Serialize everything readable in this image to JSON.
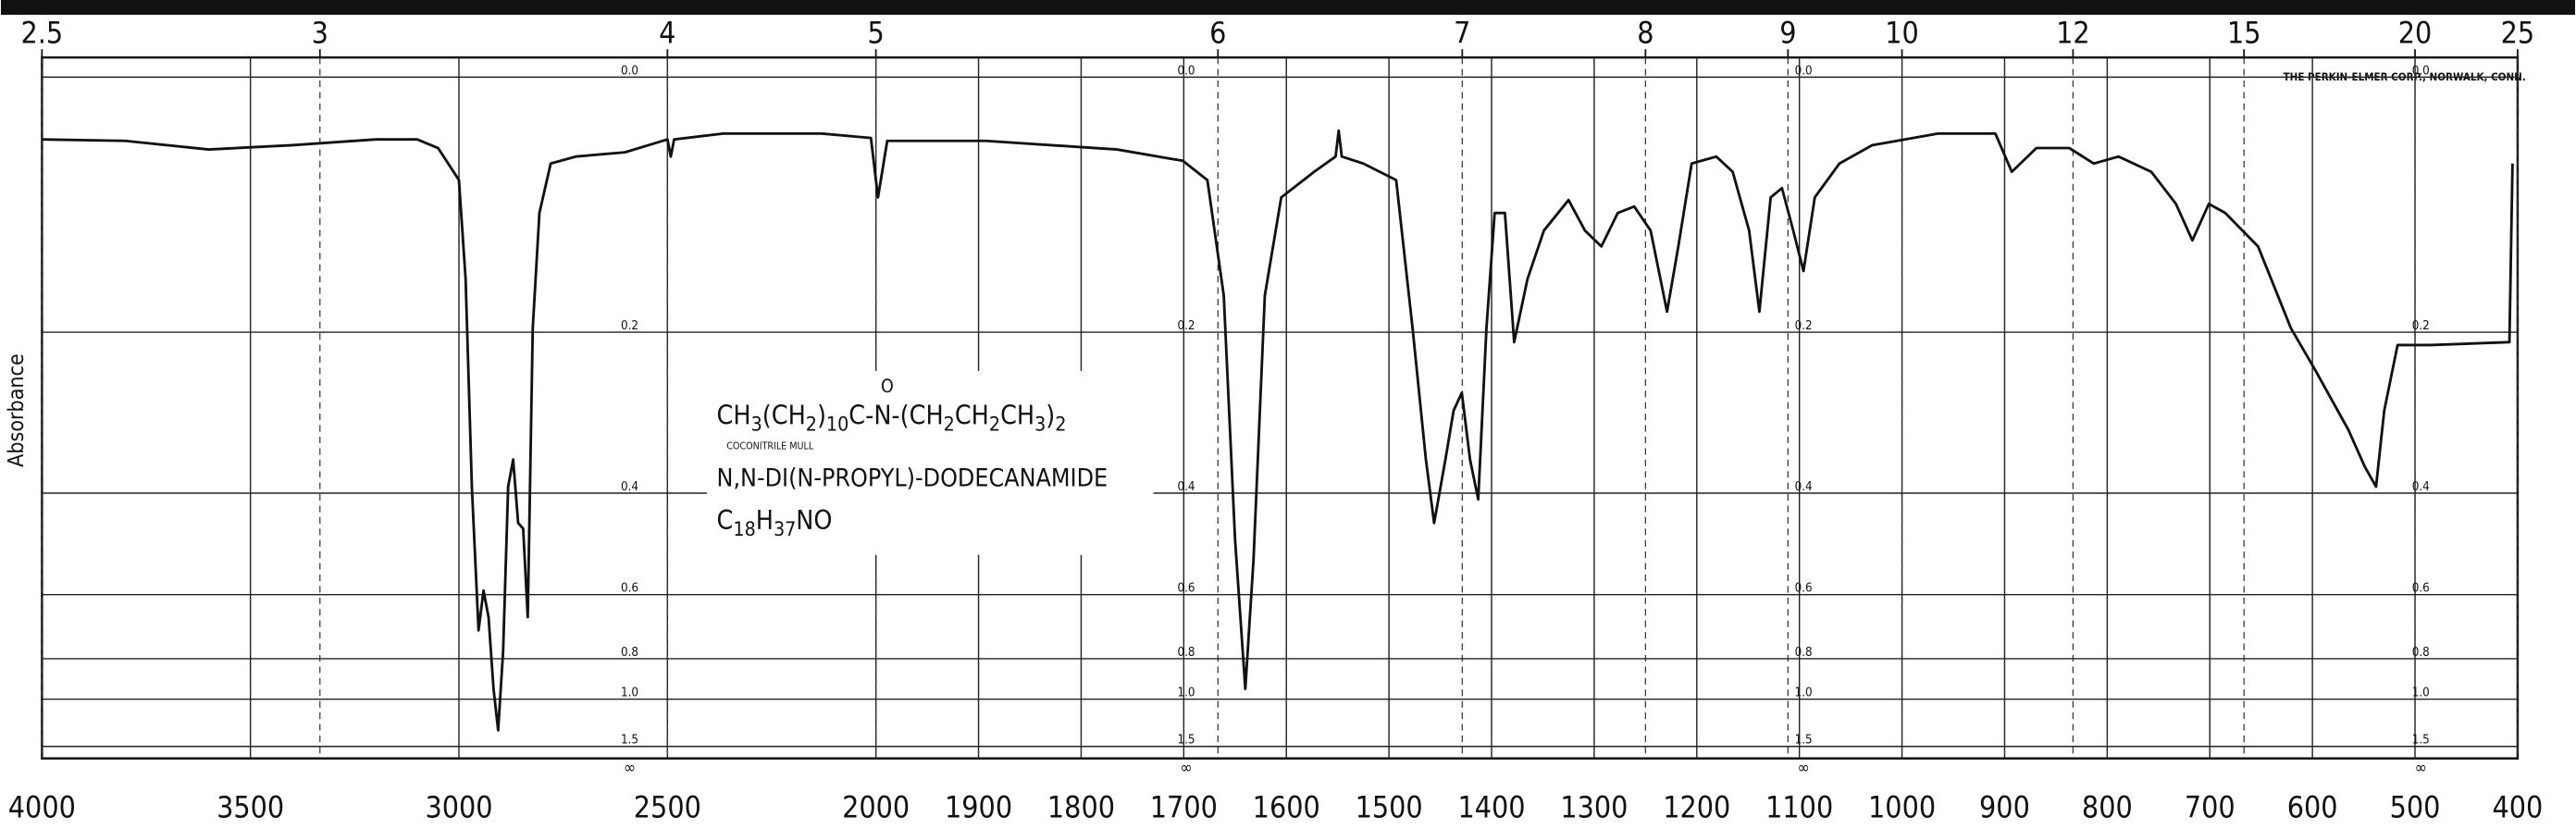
{
  "chart_data": {
    "type": "line",
    "y_label": "Absorbance",
    "maker": "THE PERKIN-ELMER CORP., NORWALK, CONN.",
    "structure": [
      {
        "t": "CH"
      },
      {
        "sub": "3"
      },
      {
        "t": "(CH"
      },
      {
        "sub": "2"
      },
      {
        "t": ")"
      },
      {
        "sub": "10"
      },
      {
        "t": "C-N-(CH"
      },
      {
        "sub": "2"
      },
      {
        "t": "CH"
      },
      {
        "sub": "2"
      },
      {
        "t": "CH"
      },
      {
        "sub": "3"
      },
      {
        "t": ")"
      },
      {
        "sub": "2"
      }
    ],
    "carbonyl_o": "O",
    "sample_note": "COCONITRILE MULL",
    "compound_name": "N,N-DI(N-PROPYL)-DODECANAMIDE",
    "formula": [
      {
        "t": "C"
      },
      {
        "sub": "18"
      },
      {
        "t": "H"
      },
      {
        "sub": "37"
      },
      {
        "t": "NO"
      }
    ],
    "xlim": [
      4000,
      400
    ],
    "x_break": 2000,
    "xticks": [
      4000,
      3500,
      3000,
      2500,
      2000,
      1900,
      1800,
      1700,
      1600,
      1500,
      1400,
      1300,
      1200,
      1100,
      1000,
      900,
      800,
      700,
      600,
      500,
      400
    ],
    "x2_unit": "micron",
    "x2ticks": [
      2.5,
      3,
      4,
      5,
      6,
      7,
      8,
      9,
      10,
      12,
      15,
      20,
      25
    ],
    "yscale": "absorbance",
    "ylim": [
      0,
      1.5
    ],
    "yticks": [
      {
        "value": 0,
        "label": "0.0"
      },
      0.2,
      0.4,
      0.6,
      0.8,
      {
        "value": 1,
        "label": "1.0"
      },
      1.5
    ],
    "y_infinity_label": "∞",
    "grid": true,
    "x": [
      4000,
      3800,
      3600,
      3400,
      3200,
      3100,
      3050,
      3000,
      2984,
      2969,
      2953,
      2941,
      2929,
      2917,
      2906,
      2894,
      2882,
      2870,
      2858,
      2846,
      2835,
      2823,
      2807,
      2780,
      2720,
      2602,
      2500,
      2492,
      2484,
      2366,
      2130,
      2012,
      1998,
      1989,
      1893,
      1765,
      1701,
      1677,
      1661,
      1650,
      1640,
      1632,
      1621,
      1605,
      1573,
      1552,
      1549,
      1546,
      1525,
      1493,
      1477,
      1464,
      1456,
      1445,
      1437,
      1429,
      1421,
      1413,
      1405,
      1397,
      1387,
      1378,
      1365,
      1349,
      1325,
      1309,
      1293,
      1277,
      1261,
      1245,
      1229,
      1218,
      1205,
      1181,
      1165,
      1149,
      1139,
      1128,
      1117,
      1106,
      1096,
      1085,
      1061,
      1029,
      965,
      909,
      893,
      869,
      837,
      813,
      789,
      757,
      733,
      717,
      701,
      685,
      653,
      621,
      597,
      565,
      549,
      538,
      530,
      517,
      485,
      408,
      405
    ],
    "series": [
      {
        "name": "N,N-DI(N-PROPYL)-DODECANAMIDE",
        "color": "#111111",
        "values": [
          0.041,
          0.042,
          0.048,
          0.045,
          0.041,
          0.041,
          0.047,
          0.07,
          0.15,
          0.39,
          0.7,
          0.59,
          0.66,
          0.94,
          1.26,
          0.77,
          0.39,
          0.35,
          0.45,
          0.46,
          0.66,
          0.196,
          0.095,
          0.058,
          0.053,
          0.05,
          0.041,
          0.053,
          0.041,
          0.037,
          0.037,
          0.04,
          0.083,
          0.042,
          0.042,
          0.048,
          0.056,
          0.07,
          0.165,
          0.48,
          0.94,
          0.52,
          0.165,
          0.083,
          0.064,
          0.053,
          0.035,
          0.053,
          0.058,
          0.07,
          0.196,
          0.35,
          0.45,
          0.35,
          0.286,
          0.265,
          0.35,
          0.41,
          0.196,
          0.095,
          0.095,
          0.21,
          0.15,
          0.109,
          0.085,
          0.109,
          0.122,
          0.095,
          0.09,
          0.109,
          0.18,
          0.122,
          0.058,
          0.053,
          0.064,
          0.109,
          0.18,
          0.083,
          0.076,
          0.109,
          0.143,
          0.083,
          0.058,
          0.045,
          0.037,
          0.037,
          0.064,
          0.047,
          0.047,
          0.058,
          0.053,
          0.064,
          0.088,
          0.117,
          0.088,
          0.095,
          0.122,
          0.196,
          0.24,
          0.31,
          0.36,
          0.39,
          0.286,
          0.213,
          0.213,
          0.21,
          0.058
        ]
      }
    ]
  }
}
